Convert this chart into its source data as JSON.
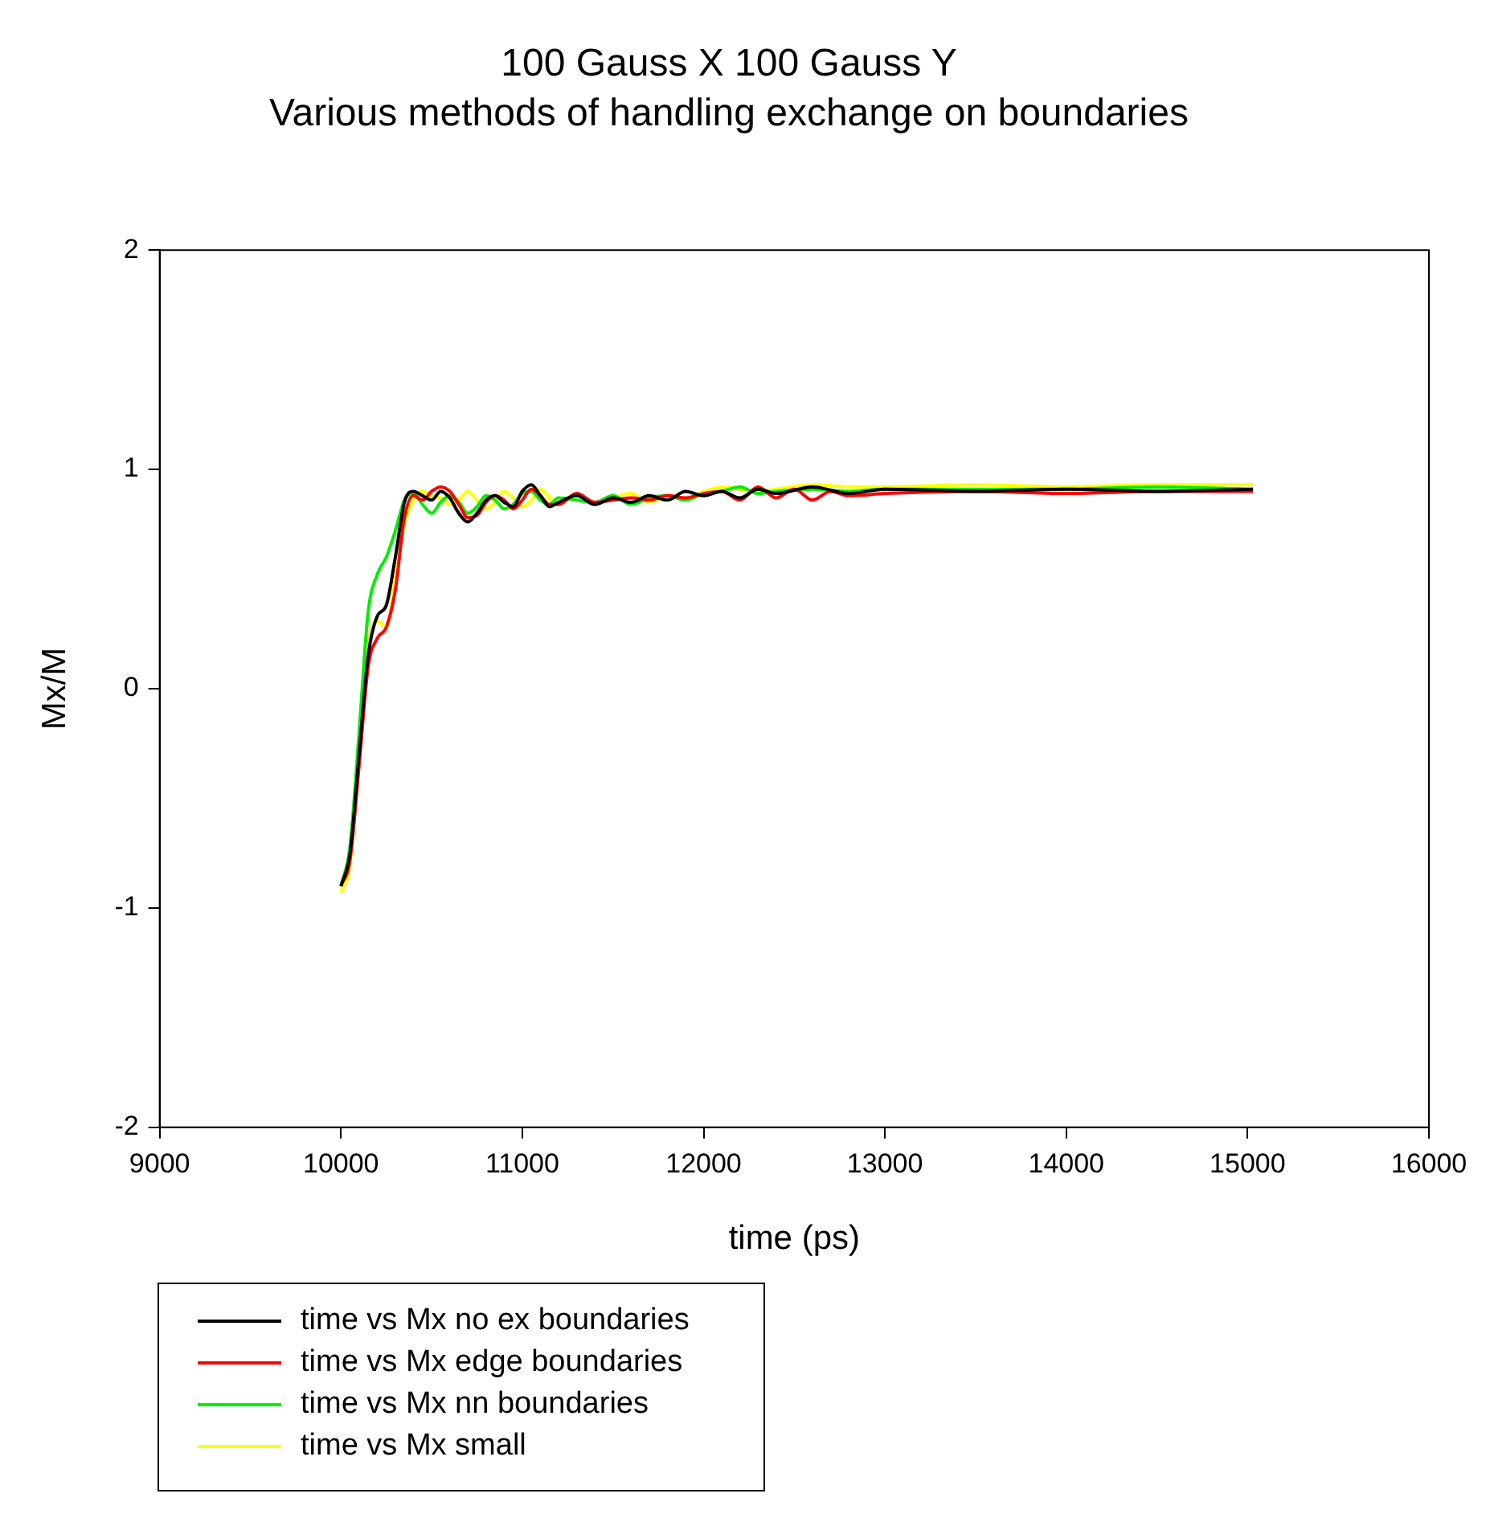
{
  "chart_data": {
    "type": "line",
    "title": "100 Gauss X 100 Gauss Y",
    "subtitle": "Various methods of handling exchange on boundaries",
    "xlabel": "time (ps)",
    "ylabel": "Mx/M",
    "xlim": [
      9000,
      16000
    ],
    "xticks": [
      9000,
      10000,
      11000,
      12000,
      13000,
      14000,
      15000,
      16000
    ],
    "ylim": [
      -2,
      2
    ],
    "yticks": [
      -2,
      -1,
      0,
      1,
      2
    ],
    "grid": false,
    "legend": "bottom left",
    "marker": "none",
    "line_style": "solid",
    "series": [
      {
        "name": "time vs Mx no ex boundaries",
        "color": "#000000",
        "x": [
          10000,
          10050,
          10100,
          10150,
          10200,
          10250,
          10300,
          10350,
          10400,
          10450,
          10500,
          10550,
          10600,
          10650,
          10700,
          10750,
          10800,
          10850,
          10900,
          10950,
          11000,
          11050,
          11100,
          11150,
          11200,
          11300,
          11400,
          11500,
          11600,
          11700,
          11800,
          11900,
          12000,
          12100,
          12200,
          12300,
          12400,
          12600,
          12800,
          13000,
          13500,
          14000,
          14500,
          15030
        ],
        "values": [
          -0.9,
          -0.75,
          -0.3,
          0.15,
          0.33,
          0.38,
          0.6,
          0.85,
          0.9,
          0.88,
          0.86,
          0.9,
          0.87,
          0.8,
          0.76,
          0.8,
          0.86,
          0.88,
          0.85,
          0.83,
          0.9,
          0.93,
          0.88,
          0.83,
          0.85,
          0.88,
          0.84,
          0.87,
          0.85,
          0.88,
          0.86,
          0.9,
          0.88,
          0.9,
          0.87,
          0.91,
          0.89,
          0.92,
          0.89,
          0.91,
          0.9,
          0.91,
          0.9,
          0.91
        ]
      },
      {
        "name": "time vs Mx edge boundaries",
        "color": "#ff0000",
        "x": [
          10000,
          10050,
          10100,
          10150,
          10200,
          10250,
          10300,
          10350,
          10400,
          10450,
          10500,
          10550,
          10600,
          10650,
          10700,
          10750,
          10800,
          10850,
          10900,
          10950,
          11000,
          11050,
          11100,
          11150,
          11200,
          11300,
          11400,
          11500,
          11600,
          11700,
          11800,
          11900,
          12000,
          12100,
          12200,
          12300,
          12400,
          12500,
          12600,
          12700,
          12800,
          13000,
          13500,
          14000,
          14500,
          15030
        ],
        "values": [
          -0.9,
          -0.78,
          -0.35,
          0.1,
          0.23,
          0.28,
          0.45,
          0.78,
          0.88,
          0.86,
          0.9,
          0.92,
          0.9,
          0.84,
          0.78,
          0.79,
          0.85,
          0.88,
          0.86,
          0.82,
          0.86,
          0.91,
          0.88,
          0.84,
          0.84,
          0.89,
          0.85,
          0.86,
          0.87,
          0.86,
          0.88,
          0.87,
          0.89,
          0.9,
          0.86,
          0.92,
          0.87,
          0.91,
          0.86,
          0.9,
          0.88,
          0.89,
          0.9,
          0.89,
          0.9,
          0.9
        ]
      },
      {
        "name": "time vs Mx nn boundaries",
        "color": "#00ee00",
        "x": [
          10000,
          10050,
          10100,
          10150,
          10200,
          10250,
          10300,
          10350,
          10400,
          10450,
          10500,
          10550,
          10600,
          10650,
          10700,
          10750,
          10800,
          10850,
          10900,
          10950,
          11000,
          11050,
          11100,
          11150,
          11200,
          11300,
          11400,
          11500,
          11600,
          11700,
          11800,
          11900,
          12000,
          12100,
          12200,
          12300,
          12400,
          12600,
          12800,
          13000,
          13500,
          14000,
          14500,
          15030
        ],
        "values": [
          -0.9,
          -0.72,
          -0.2,
          0.35,
          0.52,
          0.6,
          0.72,
          0.86,
          0.89,
          0.84,
          0.8,
          0.85,
          0.88,
          0.85,
          0.8,
          0.83,
          0.88,
          0.86,
          0.82,
          0.84,
          0.89,
          0.9,
          0.86,
          0.84,
          0.87,
          0.86,
          0.85,
          0.88,
          0.84,
          0.87,
          0.88,
          0.86,
          0.89,
          0.9,
          0.92,
          0.89,
          0.9,
          0.91,
          0.9,
          0.91,
          0.91,
          0.91,
          0.92,
          0.91
        ]
      },
      {
        "name": "time vs Mx small",
        "color": "#ffff00",
        "x": [
          10000,
          10050,
          10100,
          10150,
          10200,
          10250,
          10300,
          10350,
          10400,
          10450,
          10500,
          10550,
          10600,
          10650,
          10700,
          10750,
          10800,
          10850,
          10900,
          10950,
          11000,
          11050,
          11100,
          11150,
          11200,
          11300,
          11400,
          11500,
          11600,
          11700,
          11800,
          11900,
          12000,
          12100,
          12200,
          12300,
          12400,
          12600,
          12800,
          13000,
          13500,
          14000,
          14500,
          15030
        ],
        "values": [
          -0.93,
          -0.8,
          -0.3,
          0.2,
          0.31,
          0.28,
          0.5,
          0.75,
          0.86,
          0.9,
          0.88,
          0.87,
          0.84,
          0.86,
          0.9,
          0.86,
          0.82,
          0.85,
          0.9,
          0.87,
          0.83,
          0.86,
          0.91,
          0.87,
          0.84,
          0.89,
          0.85,
          0.87,
          0.89,
          0.85,
          0.88,
          0.87,
          0.9,
          0.92,
          0.91,
          0.9,
          0.91,
          0.93,
          0.92,
          0.92,
          0.93,
          0.92,
          0.93,
          0.93
        ]
      }
    ]
  }
}
